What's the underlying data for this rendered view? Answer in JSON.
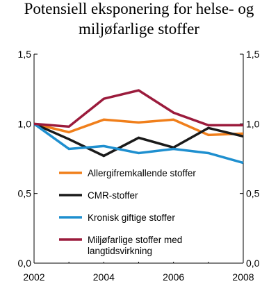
{
  "chart_data": {
    "type": "line",
    "title_lines": [
      "Potensiell eksponering for helse- og",
      "miljøfarlige stoffer"
    ],
    "x": [
      2002,
      2003,
      2004,
      2005,
      2006,
      2007,
      2008
    ],
    "x_ticks": [
      "2002",
      "2004",
      "2006",
      "2008"
    ],
    "ylim": [
      0,
      1.5
    ],
    "y_ticks_left": [
      "0,0",
      "0,5",
      "1,0",
      "1,5"
    ],
    "y_ticks_right": [
      "0,0",
      "0,5",
      "1,0",
      "1,5"
    ],
    "grid": false,
    "legend_position": "lower-left",
    "series": [
      {
        "name": "Allergifremkallende stoffer",
        "color": "#f07f1b",
        "values": [
          1.0,
          0.94,
          1.03,
          1.01,
          1.03,
          0.92,
          0.93
        ]
      },
      {
        "name": "CMR-stoffer",
        "color": "#1a1a1a",
        "values": [
          1.0,
          0.89,
          0.77,
          0.9,
          0.83,
          0.97,
          0.91
        ]
      },
      {
        "name": "Kronisk giftige stoffer",
        "color": "#1e8fcf",
        "values": [
          1.0,
          0.82,
          0.84,
          0.79,
          0.82,
          0.79,
          0.72
        ]
      },
      {
        "name": "Miljøfarlige stoffer med langtidsvirkning",
        "legend_lines": [
          "Miljøfarlige stoffer med",
          "langtidsvirkning"
        ],
        "color": "#9b1b3c",
        "values": [
          1.0,
          0.98,
          1.18,
          1.24,
          1.08,
          0.99,
          0.99
        ]
      }
    ]
  }
}
